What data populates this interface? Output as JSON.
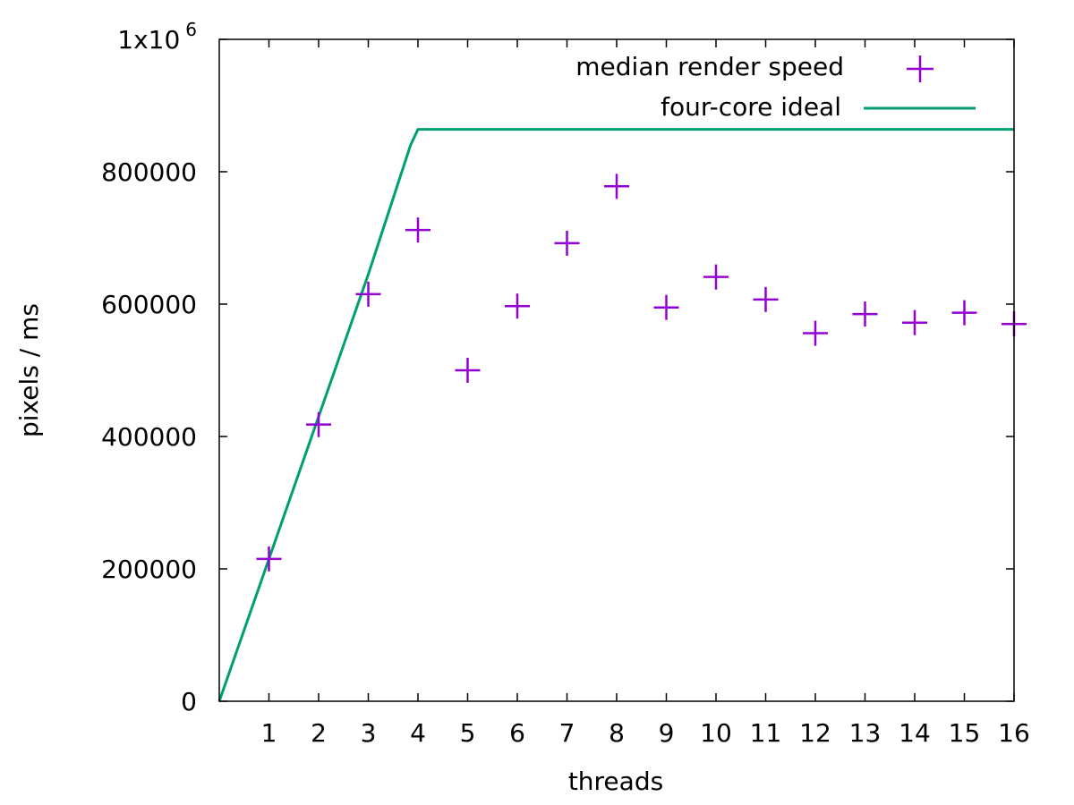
{
  "chart_data": {
    "type": "scatter",
    "title": "",
    "xlabel": "threads",
    "ylabel": "pixels / ms",
    "xlim": [
      0,
      16
    ],
    "ylim": [
      0,
      1000000
    ],
    "x_ticks": [
      "1",
      "2",
      "3",
      "4",
      "5",
      "6",
      "7",
      "8",
      "9",
      "10",
      "11",
      "12",
      "13",
      "14",
      "15",
      "16"
    ],
    "y_ticks": [
      {
        "value": 0,
        "label": "0"
      },
      {
        "value": 200000,
        "label": "200000"
      },
      {
        "value": 400000,
        "label": "400000"
      },
      {
        "value": 600000,
        "label": "600000"
      },
      {
        "value": 800000,
        "label": "800000"
      },
      {
        "value": 1000000,
        "label_base": "1x10",
        "label_exp": "6"
      }
    ],
    "grid": false,
    "legend_position": "top-right",
    "series": [
      {
        "name": "median render speed",
        "type": "scatter",
        "marker": "plus",
        "color": "#9400d3",
        "x": [
          1,
          2,
          3,
          4,
          5,
          6,
          7,
          8,
          9,
          10,
          11,
          12,
          13,
          14,
          15,
          16
        ],
        "y": [
          215000,
          418000,
          615000,
          712000,
          500000,
          597000,
          692000,
          778000,
          595000,
          641000,
          607000,
          556000,
          585000,
          572000,
          587000,
          570000
        ]
      },
      {
        "name": "four-core ideal",
        "type": "line",
        "color": "#009e73",
        "x": [
          0,
          1,
          2,
          3,
          3.85,
          4,
          16
        ],
        "y": [
          0,
          215000,
          430000,
          645000,
          840000,
          864000,
          864000
        ]
      }
    ]
  }
}
